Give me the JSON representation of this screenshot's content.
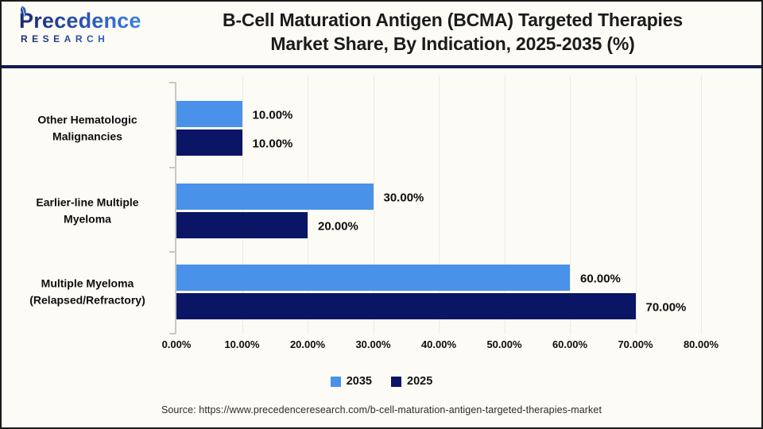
{
  "header": {
    "logo": {
      "brand": "Precedence",
      "sub": "RESEARCH"
    },
    "title_line1": "B-Cell Maturation Antigen (BCMA) Targeted Therapies",
    "title_line2": "Market Share, By Indication, 2025-2035 (%)"
  },
  "chart_data": {
    "type": "bar",
    "orientation": "horizontal",
    "title": "B-Cell Maturation Antigen (BCMA) Targeted Therapies Market Share, By Indication, 2025-2035 (%)",
    "categories": [
      "Other Hematologic Malignancies",
      "Earlier-line Multiple Myeloma",
      "Multiple Myeloma (Relapsed/Refractory)"
    ],
    "category_lines": [
      [
        "Other Hematologic",
        "Malignancies"
      ],
      [
        "Earlier-line Multiple",
        "Myeloma"
      ],
      [
        "Multiple Myeloma",
        "(Relapsed/Refractory)"
      ]
    ],
    "series": [
      {
        "name": "2035",
        "color": "#4a91e9",
        "values": [
          10,
          30,
          60
        ],
        "labels": [
          "10.00%",
          "30.00%",
          "60.00%"
        ]
      },
      {
        "name": "2025",
        "color": "#0a1566",
        "values": [
          10,
          20,
          70
        ],
        "labels": [
          "10.00%",
          "20.00%",
          "70.00%"
        ]
      }
    ],
    "x_ticks": [
      "0.00%",
      "10.00%",
      "20.00%",
      "30.00%",
      "40.00%",
      "50.00%",
      "60.00%",
      "70.00%",
      "80.00%"
    ],
    "xlim": [
      0,
      80
    ],
    "grid": true,
    "legend_position": "bottom",
    "value_label_format": "0.00%"
  },
  "footer": {
    "source": "Source: https://www.precedenceresearch.com/b-cell-maturation-antigen-targeted-therapies-market"
  },
  "colors": {
    "series_2035": "#4a91e9",
    "series_2025": "#0a1566",
    "divider": "#121a4e",
    "axis": "#c7c7c3",
    "gridline": "#ebeae2",
    "background": "#fcfbf5",
    "border": "#1a1a1a"
  }
}
